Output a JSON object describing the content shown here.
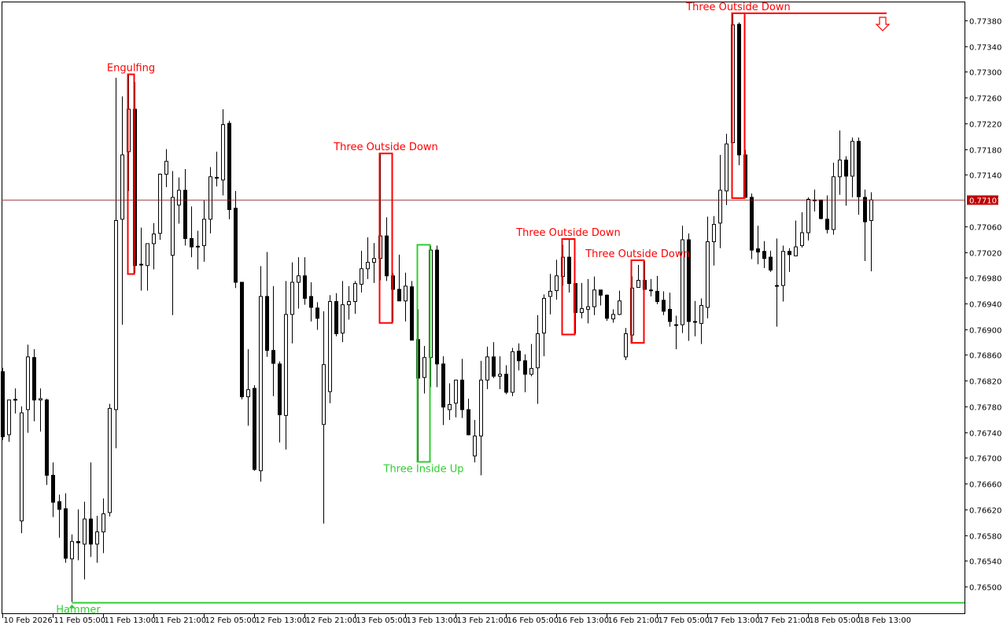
{
  "chart_data": {
    "type": "candlestick",
    "timeframe_hours": 1,
    "ylim": [
      0.7647,
      0.7741
    ],
    "y_ticks": [
      "0.77380",
      "0.77340",
      "0.77300",
      "0.77260",
      "0.77220",
      "0.77180",
      "0.77140",
      "0.77060",
      "0.77020",
      "0.76980",
      "0.76940",
      "0.76900",
      "0.76860",
      "0.76820",
      "0.76780",
      "0.76740",
      "0.76700",
      "0.76660",
      "0.76620",
      "0.76580",
      "0.76540",
      "0.76500"
    ],
    "x_ticks": [
      {
        "candle": 0,
        "label": "10 Feb 2026"
      },
      {
        "candle": 8,
        "label": "11 Feb 05:00"
      },
      {
        "candle": 16,
        "label": "11 Feb 13:00"
      },
      {
        "candle": 24,
        "label": "11 Feb 21:00"
      },
      {
        "candle": 32,
        "label": "12 Feb 05:00"
      },
      {
        "candle": 40,
        "label": "12 Feb 13:00"
      },
      {
        "candle": 48,
        "label": "12 Feb 21:00"
      },
      {
        "candle": 56,
        "label": "13 Feb 05:00"
      },
      {
        "candle": 64,
        "label": "13 Feb 13:00"
      },
      {
        "candle": 72,
        "label": "13 Feb 21:00"
      },
      {
        "candle": 80,
        "label": "16 Feb 05:00"
      },
      {
        "candle": 88,
        "label": "16 Feb 13:00"
      },
      {
        "candle": 96,
        "label": "16 Feb 21:00"
      },
      {
        "candle": 104,
        "label": "17 Feb 05:00"
      },
      {
        "candle": 112,
        "label": "17 Feb 13:00"
      },
      {
        "candle": 120,
        "label": "17 Feb 21:00"
      },
      {
        "candle": 128,
        "label": "18 Feb 05:00"
      },
      {
        "candle": 136,
        "label": "18 Feb 13:00"
      }
    ],
    "current_price": "0.77101",
    "candles_ohlc": [
      [
        0.76834,
        0.7684,
        0.76728,
        0.76733
      ],
      [
        0.76736,
        0.7679,
        0.76725,
        0.7679
      ],
      [
        0.7679,
        0.76808,
        0.76769,
        0.76791
      ],
      [
        0.76602,
        0.7678,
        0.76583,
        0.7677
      ],
      [
        0.76775,
        0.76876,
        0.76739,
        0.76857
      ],
      [
        0.76856,
        0.76869,
        0.76757,
        0.7679
      ],
      [
        0.7679,
        0.76808,
        0.76741,
        0.76792
      ],
      [
        0.7679,
        0.76792,
        0.76658,
        0.76673
      ],
      [
        0.76673,
        0.76693,
        0.76608,
        0.76631
      ],
      [
        0.76632,
        0.76643,
        0.76576,
        0.7662
      ],
      [
        0.76621,
        0.76645,
        0.76537,
        0.76544
      ],
      [
        0.76543,
        0.76581,
        0.76476,
        0.7657
      ],
      [
        0.7657,
        0.7662,
        0.76541,
        0.76568
      ],
      [
        0.76566,
        0.76632,
        0.76511,
        0.76605
      ],
      [
        0.76605,
        0.76693,
        0.76546,
        0.76566
      ],
      [
        0.76566,
        0.7661,
        0.76537,
        0.76585
      ],
      [
        0.76585,
        0.76637,
        0.76552,
        0.76613
      ],
      [
        0.76615,
        0.76784,
        0.76609,
        0.76777
      ],
      [
        0.76775,
        0.77291,
        0.76715,
        0.77069
      ],
      [
        0.77071,
        0.77262,
        0.76907,
        0.77171
      ],
      [
        0.77176,
        0.77295,
        0.77115,
        0.77242
      ],
      [
        0.77242,
        0.77284,
        0.76987,
        0.76999
      ],
      [
        0.77,
        0.77058,
        0.7696,
        0.77001
      ],
      [
        0.76999,
        0.77033,
        0.7696,
        0.77033
      ],
      [
        0.77033,
        0.77065,
        0.76993,
        0.77048
      ],
      [
        0.77049,
        0.77142,
        0.77039,
        0.77141
      ],
      [
        0.77141,
        0.7718,
        0.77121,
        0.77161
      ],
      [
        0.77015,
        0.77146,
        0.76922,
        0.77105
      ],
      [
        0.77093,
        0.77136,
        0.77064,
        0.77116
      ],
      [
        0.77116,
        0.77149,
        0.7703,
        0.77041
      ],
      [
        0.77041,
        0.77091,
        0.77012,
        0.77028
      ],
      [
        0.77028,
        0.77053,
        0.76993,
        0.77029
      ],
      [
        0.7703,
        0.771,
        0.77005,
        0.77071
      ],
      [
        0.77071,
        0.77152,
        0.77049,
        0.77137
      ],
      [
        0.77135,
        0.77176,
        0.77122,
        0.77136
      ],
      [
        0.77132,
        0.77242,
        0.77108,
        0.77218
      ],
      [
        0.7722,
        0.77224,
        0.77071,
        0.77086
      ],
      [
        0.77088,
        0.77115,
        0.76964,
        0.76973
      ],
      [
        0.76973,
        0.76973,
        0.76791,
        0.76795
      ],
      [
        0.76795,
        0.76869,
        0.7675,
        0.76806
      ],
      [
        0.76808,
        0.76813,
        0.7668,
        0.76682
      ],
      [
        0.7668,
        0.76998,
        0.76663,
        0.76951
      ],
      [
        0.76951,
        0.7702,
        0.76857,
        0.76867
      ],
      [
        0.76867,
        0.76967,
        0.76796,
        0.76847
      ],
      [
        0.76846,
        0.7685,
        0.76724,
        0.76767
      ],
      [
        0.76766,
        0.76975,
        0.76713,
        0.76923
      ],
      [
        0.76923,
        0.77004,
        0.76878,
        0.76973
      ],
      [
        0.76973,
        0.77012,
        0.76932,
        0.76983
      ],
      [
        0.76983,
        0.77012,
        0.76938,
        0.76948
      ],
      [
        0.76951,
        0.76973,
        0.76912,
        0.76934
      ],
      [
        0.76933,
        0.76942,
        0.76899,
        0.76917
      ],
      [
        0.76752,
        0.76928,
        0.76598,
        0.76845
      ],
      [
        0.76803,
        0.76953,
        0.76785,
        0.76943
      ],
      [
        0.76943,
        0.76956,
        0.76889,
        0.76893
      ],
      [
        0.76894,
        0.76975,
        0.7688,
        0.76938
      ],
      [
        0.76938,
        0.76967,
        0.76915,
        0.76943
      ],
      [
        0.76943,
        0.76975,
        0.76924,
        0.76971
      ],
      [
        0.7697,
        0.77022,
        0.76957,
        0.76994
      ],
      [
        0.76994,
        0.77043,
        0.76978,
        0.77004
      ],
      [
        0.77004,
        0.77034,
        0.76972,
        0.7701
      ],
      [
        0.7701,
        0.77172,
        0.76976,
        0.77045
      ],
      [
        0.77045,
        0.77074,
        0.76975,
        0.76983
      ],
      [
        0.76983,
        0.76987,
        0.76911,
        0.76962
      ],
      [
        0.76962,
        0.77016,
        0.76944,
        0.76944
      ],
      [
        0.76944,
        0.76988,
        0.76912,
        0.76967
      ],
      [
        0.76966,
        0.76975,
        0.76883,
        0.76883
      ],
      [
        0.76884,
        0.76931,
        0.76695,
        0.76824
      ],
      [
        0.76825,
        0.76874,
        0.768,
        0.76856
      ],
      [
        0.76856,
        0.7703,
        0.7681,
        0.77023
      ],
      [
        0.77023,
        0.7703,
        0.7681,
        0.76846
      ],
      [
        0.76846,
        0.76858,
        0.76751,
        0.76779
      ],
      [
        0.76775,
        0.76816,
        0.76759,
        0.76783
      ],
      [
        0.76785,
        0.76821,
        0.76763,
        0.76821
      ],
      [
        0.76821,
        0.76854,
        0.76762,
        0.76775
      ],
      [
        0.76775,
        0.76792,
        0.76735,
        0.76736
      ],
      [
        0.76703,
        0.76759,
        0.76693,
        0.76734
      ],
      [
        0.76734,
        0.76851,
        0.76673,
        0.76821
      ],
      [
        0.76821,
        0.76873,
        0.76807,
        0.76857
      ],
      [
        0.76857,
        0.7688,
        0.76824,
        0.76827
      ],
      [
        0.76827,
        0.76858,
        0.76807,
        0.7683
      ],
      [
        0.7683,
        0.76844,
        0.76799,
        0.76802
      ],
      [
        0.76802,
        0.76871,
        0.76796,
        0.76865
      ],
      [
        0.76866,
        0.76878,
        0.76836,
        0.76851
      ],
      [
        0.76851,
        0.76861,
        0.76802,
        0.7683
      ],
      [
        0.7683,
        0.76877,
        0.76827,
        0.76839
      ],
      [
        0.7684,
        0.76922,
        0.76784,
        0.76893
      ],
      [
        0.76894,
        0.76954,
        0.76858,
        0.76948
      ],
      [
        0.76951,
        0.76986,
        0.76923,
        0.76959
      ],
      [
        0.7696,
        0.77008,
        0.76946,
        0.76983
      ],
      [
        0.76982,
        0.77031,
        0.76968,
        0.77012
      ],
      [
        0.77012,
        0.77039,
        0.76957,
        0.76971
      ],
      [
        0.76971,
        0.76971,
        0.76893,
        0.76926
      ],
      [
        0.76926,
        0.76972,
        0.76917,
        0.76932
      ],
      [
        0.76931,
        0.76978,
        0.76909,
        0.76935
      ],
      [
        0.76935,
        0.76982,
        0.76922,
        0.76961
      ],
      [
        0.76961,
        0.76961,
        0.76937,
        0.76953
      ],
      [
        0.76953,
        0.76954,
        0.76913,
        0.76917
      ],
      [
        0.76916,
        0.76931,
        0.7691,
        0.76923
      ],
      [
        0.76923,
        0.7696,
        0.76922,
        0.76944
      ],
      [
        0.76857,
        0.76902,
        0.76852,
        0.76893
      ],
      [
        0.76891,
        0.76982,
        0.7688,
        0.76964
      ],
      [
        0.76965,
        0.77,
        0.76965,
        0.76976
      ],
      [
        0.76976,
        0.77006,
        0.76962,
        0.76962
      ],
      [
        0.76961,
        0.76978,
        0.76951,
        0.7696
      ],
      [
        0.76959,
        0.76983,
        0.76939,
        0.76943
      ],
      [
        0.76945,
        0.76959,
        0.76922,
        0.76928
      ],
      [
        0.76931,
        0.76957,
        0.76904,
        0.76912
      ],
      [
        0.76907,
        0.76921,
        0.76869,
        0.76906
      ],
      [
        0.76907,
        0.77061,
        0.76894,
        0.77039
      ],
      [
        0.77039,
        0.77049,
        0.76882,
        0.76912
      ],
      [
        0.76912,
        0.76944,
        0.76889,
        0.76911
      ],
      [
        0.76909,
        0.76948,
        0.76877,
        0.76937
      ],
      [
        0.76934,
        0.77075,
        0.76917,
        0.77036
      ],
      [
        0.77036,
        0.77076,
        0.76999,
        0.77063
      ],
      [
        0.77065,
        0.77171,
        0.77026,
        0.77116
      ],
      [
        0.77115,
        0.77204,
        0.77093,
        0.77188
      ],
      [
        0.7719,
        0.7739,
        0.7719,
        0.77373
      ],
      [
        0.77374,
        0.77377,
        0.77155,
        0.77171
      ],
      [
        0.77171,
        0.77179,
        0.77105,
        0.77105
      ],
      [
        0.77105,
        0.77111,
        0.77009,
        0.77023
      ],
      [
        0.77025,
        0.77061,
        0.77001,
        0.7702
      ],
      [
        0.77021,
        0.77037,
        0.76995,
        0.7701
      ],
      [
        0.77012,
        0.77022,
        0.76989,
        0.76992
      ],
      [
        0.76968,
        0.77041,
        0.76904,
        0.76967
      ],
      [
        0.76968,
        0.7703,
        0.76943,
        0.77021
      ],
      [
        0.77021,
        0.77026,
        0.76989,
        0.77016
      ],
      [
        0.77014,
        0.77069,
        0.77014,
        0.77028
      ],
      [
        0.7703,
        0.77082,
        0.77027,
        0.7705
      ],
      [
        0.7705,
        0.77105,
        0.77038,
        0.77102
      ],
      [
        0.77101,
        0.77117,
        0.77083,
        0.771
      ],
      [
        0.77101,
        0.77101,
        0.77071,
        0.77072
      ],
      [
        0.77071,
        0.77108,
        0.77049,
        0.77055
      ],
      [
        0.77055,
        0.77159,
        0.77047,
        0.77137
      ],
      [
        0.77137,
        0.77209,
        0.77109,
        0.77163
      ],
      [
        0.77163,
        0.77169,
        0.77092,
        0.77138
      ],
      [
        0.77138,
        0.77198,
        0.77105,
        0.77192
      ],
      [
        0.77192,
        0.77198,
        0.77078,
        0.77106
      ],
      [
        0.77105,
        0.77117,
        0.77006,
        0.77067
      ],
      [
        0.77069,
        0.77113,
        0.7699,
        0.77101
      ]
    ],
    "patterns": [
      {
        "label": "Engulfing",
        "direction": "bearish",
        "start": 20,
        "end": 21
      },
      {
        "label": "Three Outside Down",
        "direction": "bearish",
        "start": 60,
        "end": 62
      },
      {
        "label": "Three Inside Up",
        "direction": "bullish",
        "start": 66,
        "end": 68
      },
      {
        "label": "Three Outside Down",
        "direction": "bearish",
        "start": 89,
        "end": 91
      },
      {
        "label": "Three Outside Down",
        "direction": "bearish",
        "start": 100,
        "end": 102
      },
      {
        "label": "Three Outside Down",
        "direction": "bearish",
        "start": 116,
        "end": 118,
        "signal_line": true,
        "signal_arrow": "down"
      }
    ],
    "hammer": {
      "label": "Hammer",
      "candle": 11,
      "level": 0.76476
    },
    "colors": {
      "bearish": "#ff0000",
      "bullish": "#32cd32",
      "current_price_bg": "#c00000",
      "bull_body": "#ffffff",
      "bear_body": "#000000"
    }
  }
}
